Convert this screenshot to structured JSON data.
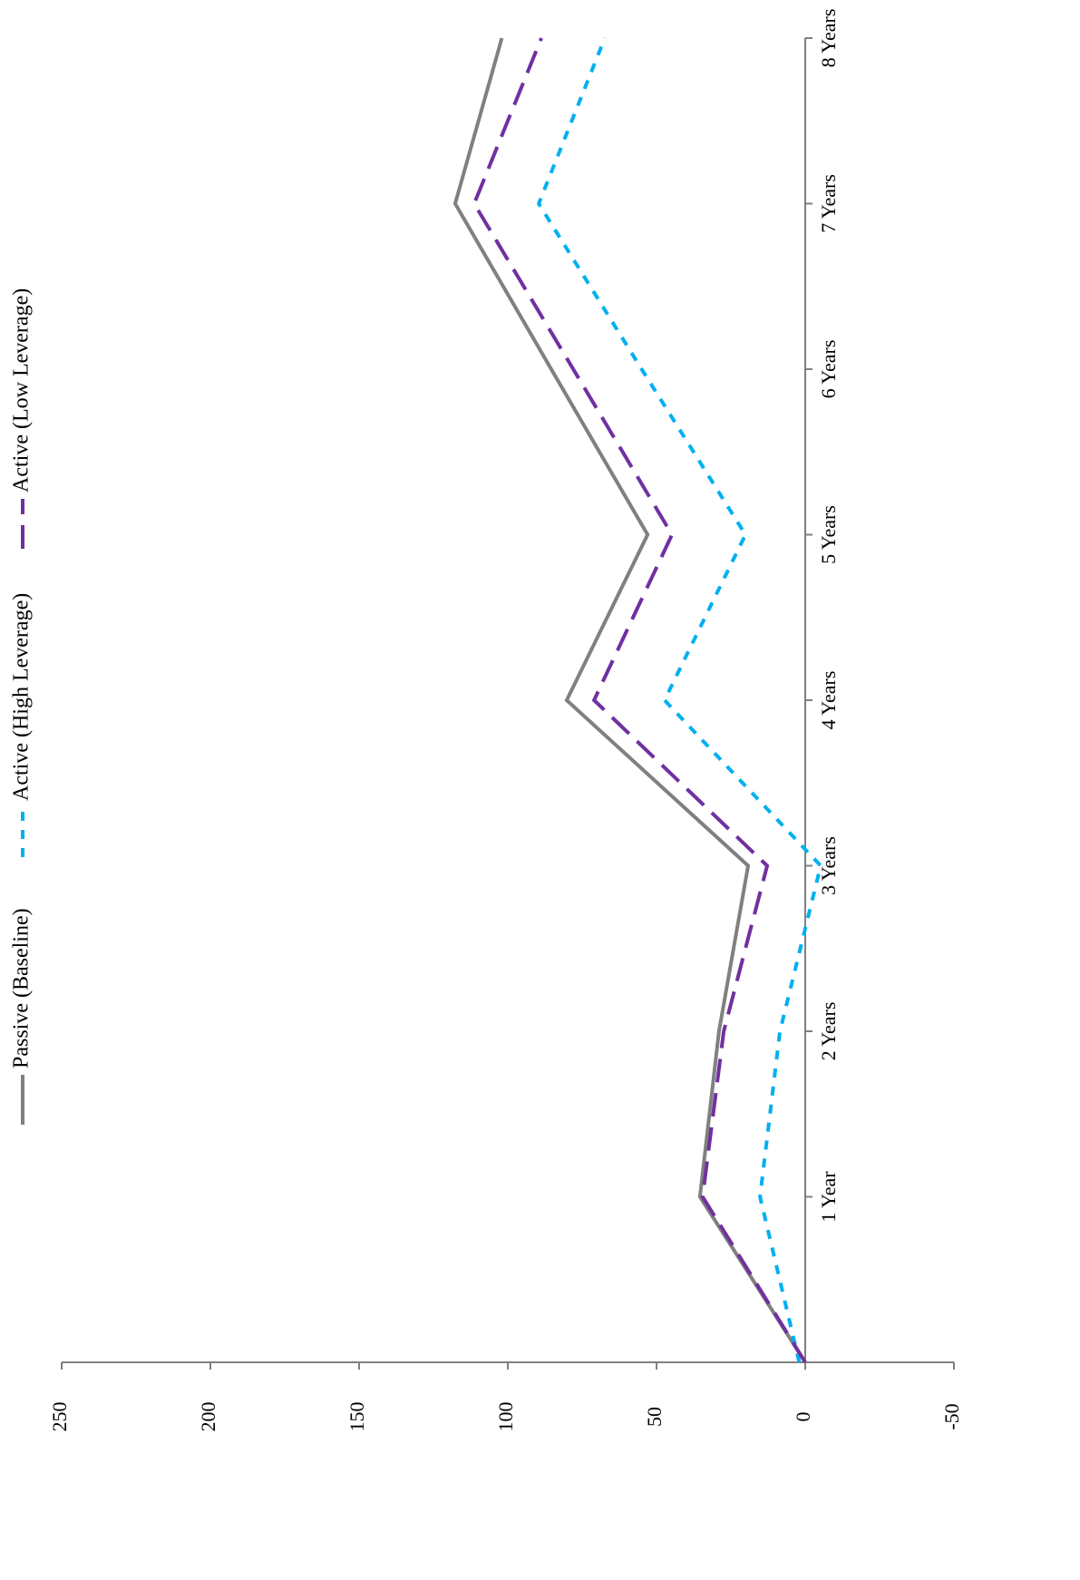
{
  "chart_data": {
    "type": "line",
    "orientation": "rotated",
    "categories": [
      null,
      "1 Year",
      "2 Years",
      "3 Years",
      "4 Years",
      "5 Years",
      "6 Years",
      "7 Years",
      "8 Years"
    ],
    "series": [
      {
        "name": "Passive (Baseline)",
        "color": "#808080",
        "dash": "solid",
        "values": [
          0,
          35.4,
          29,
          19.2,
          80.2,
          53,
          85.4,
          117.7,
          102
        ]
      },
      {
        "name": "Active (High Leverage)",
        "color": "#00b0f0",
        "dash": "short",
        "values": [
          2,
          15.2,
          8.5,
          -5.2,
          47.3,
          20.1,
          55,
          89.6,
          67.4
        ]
      },
      {
        "name": "Active (Low Leverage)",
        "color": "#7030a0",
        "dash": "long",
        "values": [
          0,
          34.5,
          27.4,
          12.8,
          71,
          44.8,
          78,
          111.3,
          88.7
        ]
      }
    ],
    "ylim": [
      -50,
      250
    ],
    "yticks": [
      -50,
      0,
      50,
      100,
      150,
      200,
      250
    ],
    "grid": false,
    "legend": "top"
  }
}
